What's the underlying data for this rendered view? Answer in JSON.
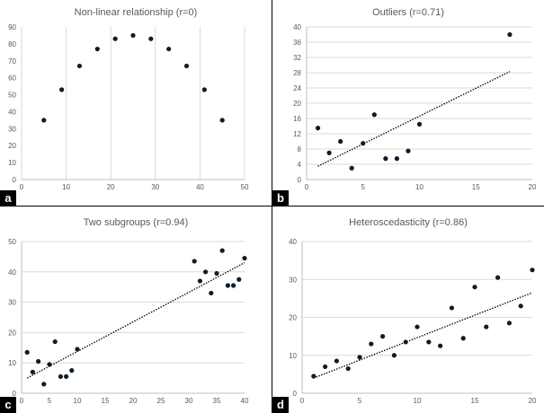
{
  "figure": {
    "panels": [
      {
        "letter": "a",
        "title": "Non-linear relationship (r=0)"
      },
      {
        "letter": "b",
        "title": "Outliers (r=0.71)"
      },
      {
        "letter": "c",
        "title": "Two subgroups (r=0.94)"
      },
      {
        "letter": "d",
        "title": "Heteroscedasticity (r=0.86)"
      }
    ]
  },
  "chart_data": [
    {
      "type": "scatter",
      "title": "Non-linear relationship (r=0)",
      "xlim": [
        0,
        50
      ],
      "ylim": [
        0,
        90
      ],
      "xticks": [
        0,
        10,
        20,
        30,
        40,
        50
      ],
      "yticks": [
        0,
        10,
        20,
        30,
        40,
        50,
        60,
        70,
        80,
        90
      ],
      "grid": "vertical",
      "trendline": false,
      "x": [
        5,
        9,
        13,
        17,
        21,
        25,
        29,
        33,
        37,
        41,
        45
      ],
      "y": [
        35,
        53,
        67,
        77,
        83,
        85,
        83,
        77,
        67,
        53,
        35
      ]
    },
    {
      "type": "scatter",
      "title": "Outliers (r=0.71)",
      "xlim": [
        0,
        20
      ],
      "ylim": [
        0,
        40
      ],
      "xticks": [
        0,
        5,
        10,
        15,
        20
      ],
      "yticks": [
        0,
        4,
        8,
        12,
        16,
        20,
        24,
        28,
        32,
        36,
        40
      ],
      "grid": "horizontal",
      "trendline": true,
      "trend": {
        "x": [
          1,
          18
        ],
        "y": [
          3.5,
          28.3
        ]
      },
      "x": [
        1,
        2,
        3,
        4,
        5,
        6,
        7,
        8,
        9,
        10,
        18
      ],
      "y": [
        13.5,
        7,
        10,
        3,
        9.5,
        17,
        5.5,
        5.5,
        7.5,
        14.5,
        38
      ]
    },
    {
      "type": "scatter",
      "title": "Two subgroups (r=0.94)",
      "xlim": [
        0,
        40
      ],
      "ylim": [
        0,
        50
      ],
      "xticks": [
        0,
        5,
        10,
        15,
        20,
        25,
        30,
        35,
        40
      ],
      "yticks": [
        0,
        10,
        20,
        30,
        40,
        50
      ],
      "grid": "horizontal",
      "trendline": true,
      "trend": {
        "x": [
          1,
          40
        ],
        "y": [
          5,
          43
        ]
      },
      "x": [
        1,
        2,
        3,
        4,
        5,
        6,
        7,
        8,
        9,
        10,
        31,
        32,
        33,
        34,
        35,
        36,
        37,
        38,
        39,
        40
      ],
      "y": [
        13.5,
        7,
        10.5,
        3,
        9.5,
        17,
        5.5,
        5.5,
        7.5,
        14.5,
        43.5,
        37,
        40,
        33,
        39.5,
        47,
        35.5,
        35.5,
        37.5,
        44.5
      ]
    },
    {
      "type": "scatter",
      "title": "Heteroscedasticity (r=0.86)",
      "xlim": [
        0,
        20
      ],
      "ylim": [
        0,
        40
      ],
      "xticks": [
        0,
        5,
        10,
        15,
        20
      ],
      "yticks": [
        0,
        10,
        20,
        30,
        40
      ],
      "grid": "horizontal",
      "trendline": true,
      "trend": {
        "x": [
          1,
          20
        ],
        "y": [
          4,
          26.5
        ]
      },
      "x": [
        1,
        2,
        3,
        4,
        5,
        6,
        7,
        8,
        9,
        10,
        11,
        12,
        13,
        14,
        15,
        16,
        17,
        18,
        19,
        20
      ],
      "y": [
        4.5,
        7,
        8.5,
        6.5,
        9.5,
        13,
        15,
        10,
        13.5,
        17.5,
        13.5,
        12.5,
        22.5,
        14.5,
        28,
        17.5,
        30.5,
        18.5,
        23,
        32.5
      ]
    }
  ]
}
